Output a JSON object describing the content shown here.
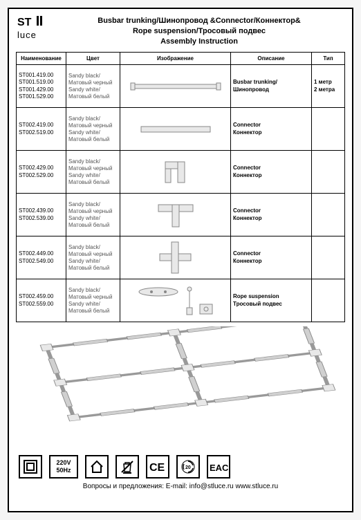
{
  "brand": "ST luce",
  "title_line1": "Busbar trunking/Шинопровод &Connector/Коннектор&",
  "title_line2": "Rope suspension/Тросовый подвес",
  "title_line3": "Assembly Instruction",
  "columns": [
    "Наименование",
    "Цвет",
    "Изображение",
    "Описание",
    "Тип"
  ],
  "rows": [
    {
      "codes": [
        "ST001.419.00",
        "ST001.519.00",
        "ST001.429.00",
        "ST001.529.00"
      ],
      "color": "Sandy black/\nМатовый черный\nSandy white/\nМатовый белый",
      "desc": "Busbar trunking/\nШинопровод",
      "type": "1 метр\n2 метра",
      "shape": "rail"
    },
    {
      "codes": [
        "ST002.419.00",
        "ST002.519.00"
      ],
      "color": "Sandy black/\nМатовый черный\nSandy white/\nМатовый белый",
      "desc": "Connector\nКоннектор",
      "type": "",
      "shape": "straight"
    },
    {
      "codes": [
        "ST002.429.00",
        "ST002.529.00"
      ],
      "color": "Sandy black/\nМатовый черный\nSandy white/\nМатовый белый",
      "desc": "Connector\nКоннектор",
      "type": "",
      "shape": "L"
    },
    {
      "codes": [
        "ST002.439.00",
        "ST002.539.00"
      ],
      "color": "Sandy black/\nМатовый черный\nSandy white/\nМатовый белый",
      "desc": "Connector\nКоннектор",
      "type": "",
      "shape": "T"
    },
    {
      "codes": [
        "ST002.449.00",
        "ST002.549.00"
      ],
      "color": "Sandy black/\nМатовый черный\nSandy white/\nМатовый белый",
      "desc": "Connector\nКоннектор",
      "type": "",
      "shape": "X"
    },
    {
      "codes": [
        "ST002.459.00",
        "ST002.559.00"
      ],
      "color": "Sandy black/\nМатовый черный\nSandy white/\nМатовый белый",
      "desc": "Rope suspension\nТросовый подвес",
      "type": "",
      "shape": "rope"
    }
  ],
  "voltage": "220V",
  "frequency": "50Hz",
  "footer": "Вопросы и предложения: E-mail: info@stluce.ru www.stluce.ru",
  "colors": {
    "border": "#000000",
    "background": "#ffffff",
    "muted": "#555555",
    "fill": "#e0e0e0"
  }
}
